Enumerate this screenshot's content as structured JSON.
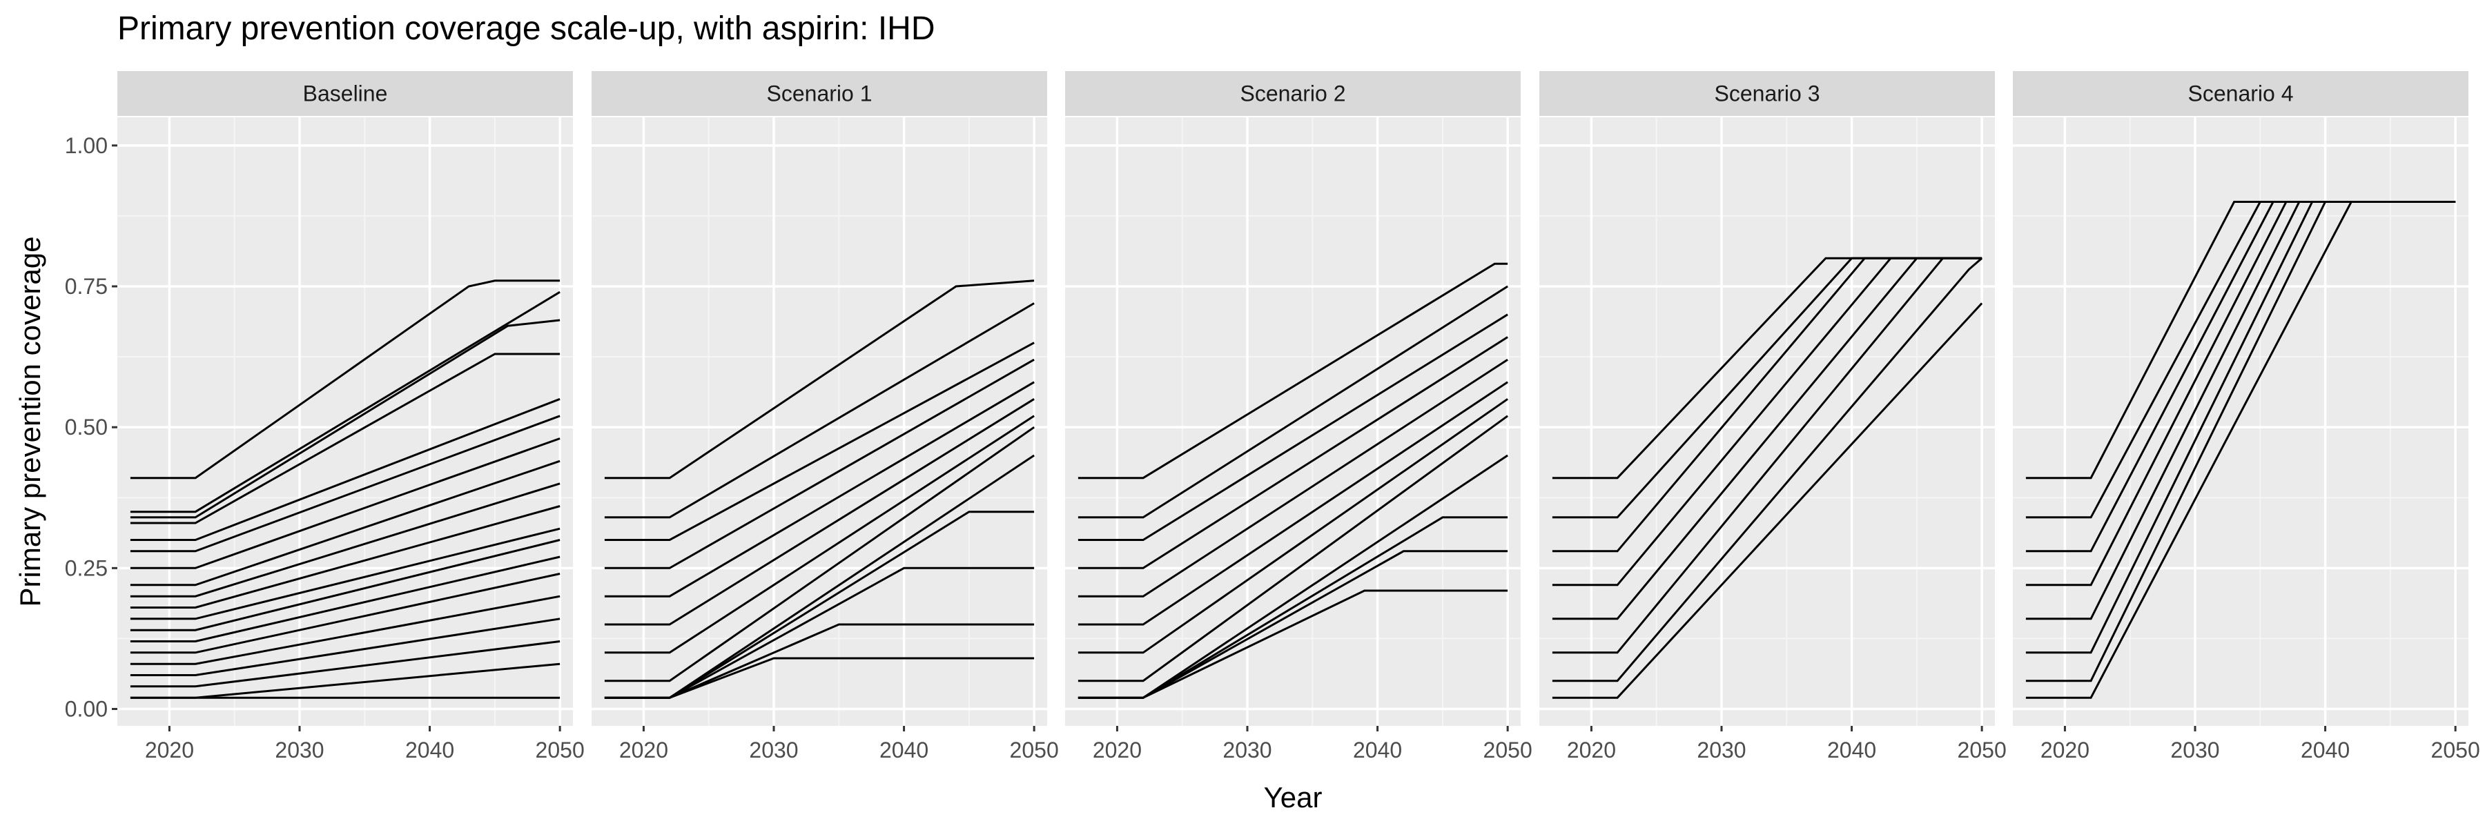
{
  "title": "Primary prevention coverage scale-up, with aspirin: IHD",
  "chart_data": {
    "type": "line",
    "facet_labels": [
      "Baseline",
      "Scenario 1",
      "Scenario 2",
      "Scenario 3",
      "Scenario 4"
    ],
    "xlabel": "Year",
    "ylabel": "Primary prevention coverage",
    "xlim": [
      2016,
      2051
    ],
    "ylim": [
      -0.03,
      1.05
    ],
    "x_ticks": [
      2020,
      2030,
      2040,
      2050
    ],
    "x_tick_labels": [
      "2020",
      "2030",
      "2040",
      "2050"
    ],
    "y_ticks": [
      0,
      0.25,
      0.5,
      0.75,
      1.0
    ],
    "y_tick_labels": [
      "0.00",
      "0.25",
      "0.50",
      "0.75",
      "1.00"
    ],
    "grid": true,
    "line_color": "#000000",
    "panel_background": "#ebebeb",
    "strip_background": "#d9d9d9",
    "note": "Each panel shows many country lines (approx.) flat at their starting coverage 2017-2022, then scaling up to 2050.",
    "series": [
      {
        "facet": "Baseline",
        "x": [
          2017,
          2022,
          2043,
          2045,
          2050
        ],
        "y": [
          0.41,
          0.41,
          0.75,
          0.76,
          0.76
        ]
      },
      {
        "facet": "Baseline",
        "x": [
          2017,
          2022,
          2050
        ],
        "y": [
          0.35,
          0.35,
          0.74
        ]
      },
      {
        "facet": "Baseline",
        "x": [
          2017,
          2022,
          2046,
          2050
        ],
        "y": [
          0.34,
          0.34,
          0.68,
          0.69
        ]
      },
      {
        "facet": "Baseline",
        "x": [
          2017,
          2022,
          2045,
          2050
        ],
        "y": [
          0.33,
          0.33,
          0.63,
          0.63
        ]
      },
      {
        "facet": "Baseline",
        "x": [
          2017,
          2022,
          2050
        ],
        "y": [
          0.3,
          0.3,
          0.55
        ]
      },
      {
        "facet": "Baseline",
        "x": [
          2017,
          2022,
          2050
        ],
        "y": [
          0.28,
          0.28,
          0.52
        ]
      },
      {
        "facet": "Baseline",
        "x": [
          2017,
          2022,
          2050
        ],
        "y": [
          0.25,
          0.25,
          0.48
        ]
      },
      {
        "facet": "Baseline",
        "x": [
          2017,
          2022,
          2050
        ],
        "y": [
          0.22,
          0.22,
          0.44
        ]
      },
      {
        "facet": "Baseline",
        "x": [
          2017,
          2022,
          2050
        ],
        "y": [
          0.2,
          0.2,
          0.4
        ]
      },
      {
        "facet": "Baseline",
        "x": [
          2017,
          2022,
          2050
        ],
        "y": [
          0.18,
          0.18,
          0.36
        ]
      },
      {
        "facet": "Baseline",
        "x": [
          2017,
          2022,
          2050
        ],
        "y": [
          0.16,
          0.16,
          0.32
        ]
      },
      {
        "facet": "Baseline",
        "x": [
          2017,
          2022,
          2050
        ],
        "y": [
          0.14,
          0.14,
          0.3
        ]
      },
      {
        "facet": "Baseline",
        "x": [
          2017,
          2022,
          2050
        ],
        "y": [
          0.12,
          0.12,
          0.27
        ]
      },
      {
        "facet": "Baseline",
        "x": [
          2017,
          2022,
          2050
        ],
        "y": [
          0.1,
          0.1,
          0.24
        ]
      },
      {
        "facet": "Baseline",
        "x": [
          2017,
          2022,
          2050
        ],
        "y": [
          0.08,
          0.08,
          0.2
        ]
      },
      {
        "facet": "Baseline",
        "x": [
          2017,
          2022,
          2050
        ],
        "y": [
          0.06,
          0.06,
          0.16
        ]
      },
      {
        "facet": "Baseline",
        "x": [
          2017,
          2022,
          2050
        ],
        "y": [
          0.04,
          0.04,
          0.12
        ]
      },
      {
        "facet": "Baseline",
        "x": [
          2017,
          2022,
          2050
        ],
        "y": [
          0.02,
          0.02,
          0.08
        ]
      },
      {
        "facet": "Baseline",
        "x": [
          2017,
          2022,
          2050
        ],
        "y": [
          0.02,
          0.02,
          0.02
        ]
      },
      {
        "facet": "Scenario 1",
        "x": [
          2017,
          2022,
          2044,
          2050
        ],
        "y": [
          0.41,
          0.41,
          0.75,
          0.76
        ]
      },
      {
        "facet": "Scenario 1",
        "x": [
          2017,
          2022,
          2050
        ],
        "y": [
          0.34,
          0.34,
          0.72
        ]
      },
      {
        "facet": "Scenario 1",
        "x": [
          2017,
          2022,
          2050
        ],
        "y": [
          0.3,
          0.3,
          0.65
        ]
      },
      {
        "facet": "Scenario 1",
        "x": [
          2017,
          2022,
          2050
        ],
        "y": [
          0.25,
          0.25,
          0.62
        ]
      },
      {
        "facet": "Scenario 1",
        "x": [
          2017,
          2022,
          2050
        ],
        "y": [
          0.2,
          0.2,
          0.58
        ]
      },
      {
        "facet": "Scenario 1",
        "x": [
          2017,
          2022,
          2050
        ],
        "y": [
          0.15,
          0.15,
          0.55
        ]
      },
      {
        "facet": "Scenario 1",
        "x": [
          2017,
          2022,
          2050
        ],
        "y": [
          0.1,
          0.1,
          0.52
        ]
      },
      {
        "facet": "Scenario 1",
        "x": [
          2017,
          2022,
          2050
        ],
        "y": [
          0.05,
          0.05,
          0.5
        ]
      },
      {
        "facet": "Scenario 1",
        "x": [
          2017,
          2022,
          2030,
          2050
        ],
        "y": [
          0.02,
          0.02,
          0.09,
          0.09
        ]
      },
      {
        "facet": "Scenario 1",
        "x": [
          2017,
          2022,
          2035,
          2050
        ],
        "y": [
          0.02,
          0.02,
          0.15,
          0.15
        ]
      },
      {
        "facet": "Scenario 1",
        "x": [
          2017,
          2022,
          2040,
          2050
        ],
        "y": [
          0.02,
          0.02,
          0.25,
          0.25
        ]
      },
      {
        "facet": "Scenario 1",
        "x": [
          2017,
          2022,
          2045,
          2050
        ],
        "y": [
          0.02,
          0.02,
          0.35,
          0.35
        ]
      },
      {
        "facet": "Scenario 1",
        "x": [
          2017,
          2022,
          2050
        ],
        "y": [
          0.02,
          0.02,
          0.45
        ]
      },
      {
        "facet": "Scenario 2",
        "x": [
          2017,
          2022,
          2049,
          2050
        ],
        "y": [
          0.41,
          0.41,
          0.79,
          0.79
        ]
      },
      {
        "facet": "Scenario 2",
        "x": [
          2017,
          2022,
          2050
        ],
        "y": [
          0.34,
          0.34,
          0.75
        ]
      },
      {
        "facet": "Scenario 2",
        "x": [
          2017,
          2022,
          2050
        ],
        "y": [
          0.3,
          0.3,
          0.7
        ]
      },
      {
        "facet": "Scenario 2",
        "x": [
          2017,
          2022,
          2050
        ],
        "y": [
          0.25,
          0.25,
          0.66
        ]
      },
      {
        "facet": "Scenario 2",
        "x": [
          2017,
          2022,
          2050
        ],
        "y": [
          0.2,
          0.2,
          0.62
        ]
      },
      {
        "facet": "Scenario 2",
        "x": [
          2017,
          2022,
          2050
        ],
        "y": [
          0.15,
          0.15,
          0.58
        ]
      },
      {
        "facet": "Scenario 2",
        "x": [
          2017,
          2022,
          2050
        ],
        "y": [
          0.1,
          0.1,
          0.55
        ]
      },
      {
        "facet": "Scenario 2",
        "x": [
          2017,
          2022,
          2050
        ],
        "y": [
          0.05,
          0.05,
          0.52
        ]
      },
      {
        "facet": "Scenario 2",
        "x": [
          2017,
          2022,
          2039,
          2050
        ],
        "y": [
          0.02,
          0.02,
          0.21,
          0.21
        ]
      },
      {
        "facet": "Scenario 2",
        "x": [
          2017,
          2022,
          2042,
          2050
        ],
        "y": [
          0.02,
          0.02,
          0.28,
          0.28
        ]
      },
      {
        "facet": "Scenario 2",
        "x": [
          2017,
          2022,
          2045,
          2050
        ],
        "y": [
          0.02,
          0.02,
          0.34,
          0.34
        ]
      },
      {
        "facet": "Scenario 2",
        "x": [
          2017,
          2022,
          2050
        ],
        "y": [
          0.02,
          0.02,
          0.45
        ]
      },
      {
        "facet": "Scenario 3",
        "x": [
          2017,
          2022,
          2038,
          2050
        ],
        "y": [
          0.41,
          0.41,
          0.8,
          0.8
        ]
      },
      {
        "facet": "Scenario 3",
        "x": [
          2017,
          2022,
          2040,
          2050
        ],
        "y": [
          0.34,
          0.34,
          0.8,
          0.8
        ]
      },
      {
        "facet": "Scenario 3",
        "x": [
          2017,
          2022,
          2041,
          2050
        ],
        "y": [
          0.28,
          0.28,
          0.8,
          0.8
        ]
      },
      {
        "facet": "Scenario 3",
        "x": [
          2017,
          2022,
          2043,
          2050
        ],
        "y": [
          0.22,
          0.22,
          0.8,
          0.8
        ]
      },
      {
        "facet": "Scenario 3",
        "x": [
          2017,
          2022,
          2045,
          2050
        ],
        "y": [
          0.16,
          0.16,
          0.8,
          0.8
        ]
      },
      {
        "facet": "Scenario 3",
        "x": [
          2017,
          2022,
          2047,
          2050
        ],
        "y": [
          0.1,
          0.1,
          0.8,
          0.8
        ]
      },
      {
        "facet": "Scenario 3",
        "x": [
          2017,
          2022,
          2049,
          2050
        ],
        "y": [
          0.05,
          0.05,
          0.78,
          0.8
        ]
      },
      {
        "facet": "Scenario 3",
        "x": [
          2017,
          2022,
          2050
        ],
        "y": [
          0.02,
          0.02,
          0.72
        ]
      },
      {
        "facet": "Scenario 4",
        "x": [
          2017,
          2022,
          2033,
          2050
        ],
        "y": [
          0.41,
          0.41,
          0.9,
          0.9
        ]
      },
      {
        "facet": "Scenario 4",
        "x": [
          2017,
          2022,
          2035,
          2050
        ],
        "y": [
          0.34,
          0.34,
          0.9,
          0.9
        ]
      },
      {
        "facet": "Scenario 4",
        "x": [
          2017,
          2022,
          2036,
          2050
        ],
        "y": [
          0.28,
          0.28,
          0.9,
          0.9
        ]
      },
      {
        "facet": "Scenario 4",
        "x": [
          2017,
          2022,
          2037,
          2050
        ],
        "y": [
          0.22,
          0.22,
          0.9,
          0.9
        ]
      },
      {
        "facet": "Scenario 4",
        "x": [
          2017,
          2022,
          2038,
          2050
        ],
        "y": [
          0.16,
          0.16,
          0.9,
          0.9
        ]
      },
      {
        "facet": "Scenario 4",
        "x": [
          2017,
          2022,
          2039,
          2050
        ],
        "y": [
          0.1,
          0.1,
          0.9,
          0.9
        ]
      },
      {
        "facet": "Scenario 4",
        "x": [
          2017,
          2022,
          2040,
          2050
        ],
        "y": [
          0.05,
          0.05,
          0.9,
          0.9
        ]
      },
      {
        "facet": "Scenario 4",
        "x": [
          2017,
          2022,
          2042,
          2050
        ],
        "y": [
          0.02,
          0.02,
          0.9,
          0.9
        ]
      }
    ]
  }
}
